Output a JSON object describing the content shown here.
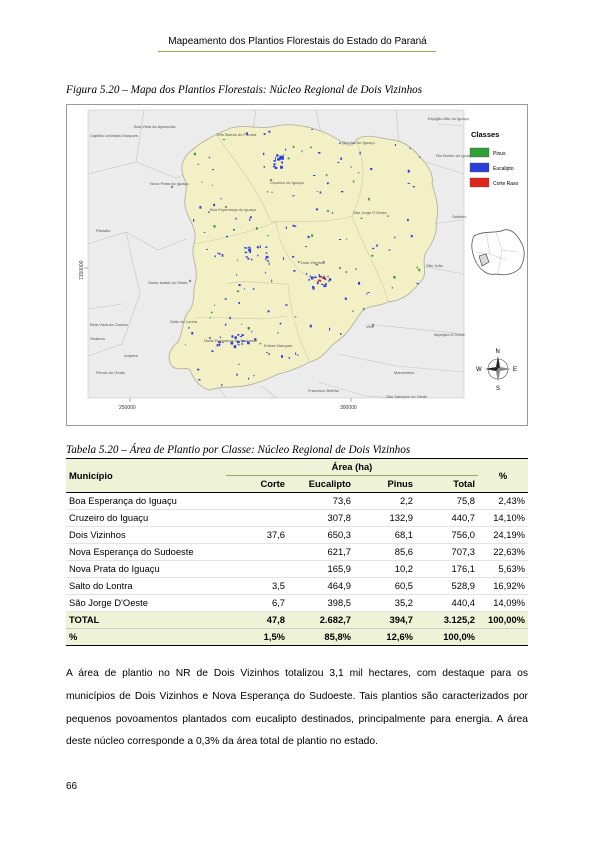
{
  "header": {
    "running_title": "Mapeamento dos Plantios Florestais do Estado do Paraná"
  },
  "figure": {
    "caption": "Figura 5.20 – Mapa dos Plantios Florestais: Núcleo Regional de Dois Vizinhos",
    "map": {
      "towns": [
        "Boa Vista da Aparecida",
        "Três Barras do Paraná",
        "Quedas do Iguaçu",
        "Espigão Alto do Iguaçu",
        "Capitão Leônidas Marques",
        "Rio Bonito do Iguaçu",
        "Nova Prata do Iguaçu",
        "Cruzeiro do Iguaçu",
        "Boa Esperança do Iguaçu",
        "São Jorge D'Oeste",
        "Planalto",
        "Saltinho",
        "Dois Vizinhos",
        "São João",
        "Santa Isabel do Oeste",
        "Verê",
        "Itapejara D'Oeste",
        "Ampére",
        "Nova Esperança do Sudoeste",
        "Enéas Marques",
        "Salto do Lontra",
        "Bela Vista da Caroba",
        "Realeza",
        "Francisco Beltrão",
        "Pérola do Oeste",
        "São Salvador do Oeste",
        "Marmeleiro"
      ],
      "x_ticks": [
        "250000",
        "300000"
      ],
      "y_tick": "7150000",
      "legend": {
        "title": "Classes",
        "items": [
          {
            "label": "Pinus",
            "color": "#2f9e35"
          },
          {
            "label": "Eucalipto",
            "color": "#2c3fd8"
          },
          {
            "label": "Corte Raso",
            "color": "#e0241b"
          }
        ]
      },
      "compass": {
        "n": "N",
        "s": "S",
        "e": "E",
        "w": "W"
      },
      "colors": {
        "region_fill": "#f4f0c6",
        "outside_fill": "#ededed",
        "border": "#b2b2a0"
      }
    }
  },
  "table": {
    "caption": "Tabela 5.20 – Área de Plantio por Classe: Núcleo Regional de Dois Vizinhos",
    "head_municipio": "Município",
    "head_area": "Área (ha)",
    "head_pct": "%",
    "sub_headers": [
      "Corte",
      "Eucalipto",
      "Pinus",
      "Total"
    ],
    "rows": [
      {
        "municipio": "Boa Esperança do Iguaçu",
        "corte": "",
        "eucalipto": "73,6",
        "pinus": "2,2",
        "total": "75,8",
        "pct": "2,43%"
      },
      {
        "municipio": "Cruzeiro do Iguaçu",
        "corte": "",
        "eucalipto": "307,8",
        "pinus": "132,9",
        "total": "440,7",
        "pct": "14,10%"
      },
      {
        "municipio": "Dois Vizinhos",
        "corte": "37,6",
        "eucalipto": "650,3",
        "pinus": "68,1",
        "total": "756,0",
        "pct": "24,19%"
      },
      {
        "municipio": "Nova Esperança do Sudoeste",
        "corte": "",
        "eucalipto": "621,7",
        "pinus": "85,6",
        "total": "707,3",
        "pct": "22,63%"
      },
      {
        "municipio": "Nova Prata do Iguaçu",
        "corte": "",
        "eucalipto": "165,9",
        "pinus": "10,2",
        "total": "176,1",
        "pct": "5,63%"
      },
      {
        "municipio": "Salto do Lontra",
        "corte": "3,5",
        "eucalipto": "464,9",
        "pinus": "60,5",
        "total": "528,9",
        "pct": "16,92%"
      },
      {
        "municipio": "São Jorge D'Oeste",
        "corte": "6,7",
        "eucalipto": "398,5",
        "pinus": "35,2",
        "total": "440,4",
        "pct": "14,09%"
      }
    ],
    "total_row": {
      "label": "TOTAL",
      "corte": "47,8",
      "eucalipto": "2.682,7",
      "pinus": "394,7",
      "total": "3.125,2",
      "pct": "100,00%"
    },
    "pct_row": {
      "label": "%",
      "corte": "1,5%",
      "eucalipto": "85,8%",
      "pinus": "12,6%",
      "total": "100,0%"
    }
  },
  "body_paragraph": "A área de plantio no NR de Dois Vizinhos totalizou 3,1 mil hectares, com destaque para os municípios de Dois Vizinhos e Nova Esperança do Sudoeste. Tais plantios são caracterizados por pequenos povoamentos plantados com eucalipto destinados, principalmente para energia. A área deste núcleo corresponde a 0,3% da área total de plantio no estado.",
  "page_number": "66"
}
